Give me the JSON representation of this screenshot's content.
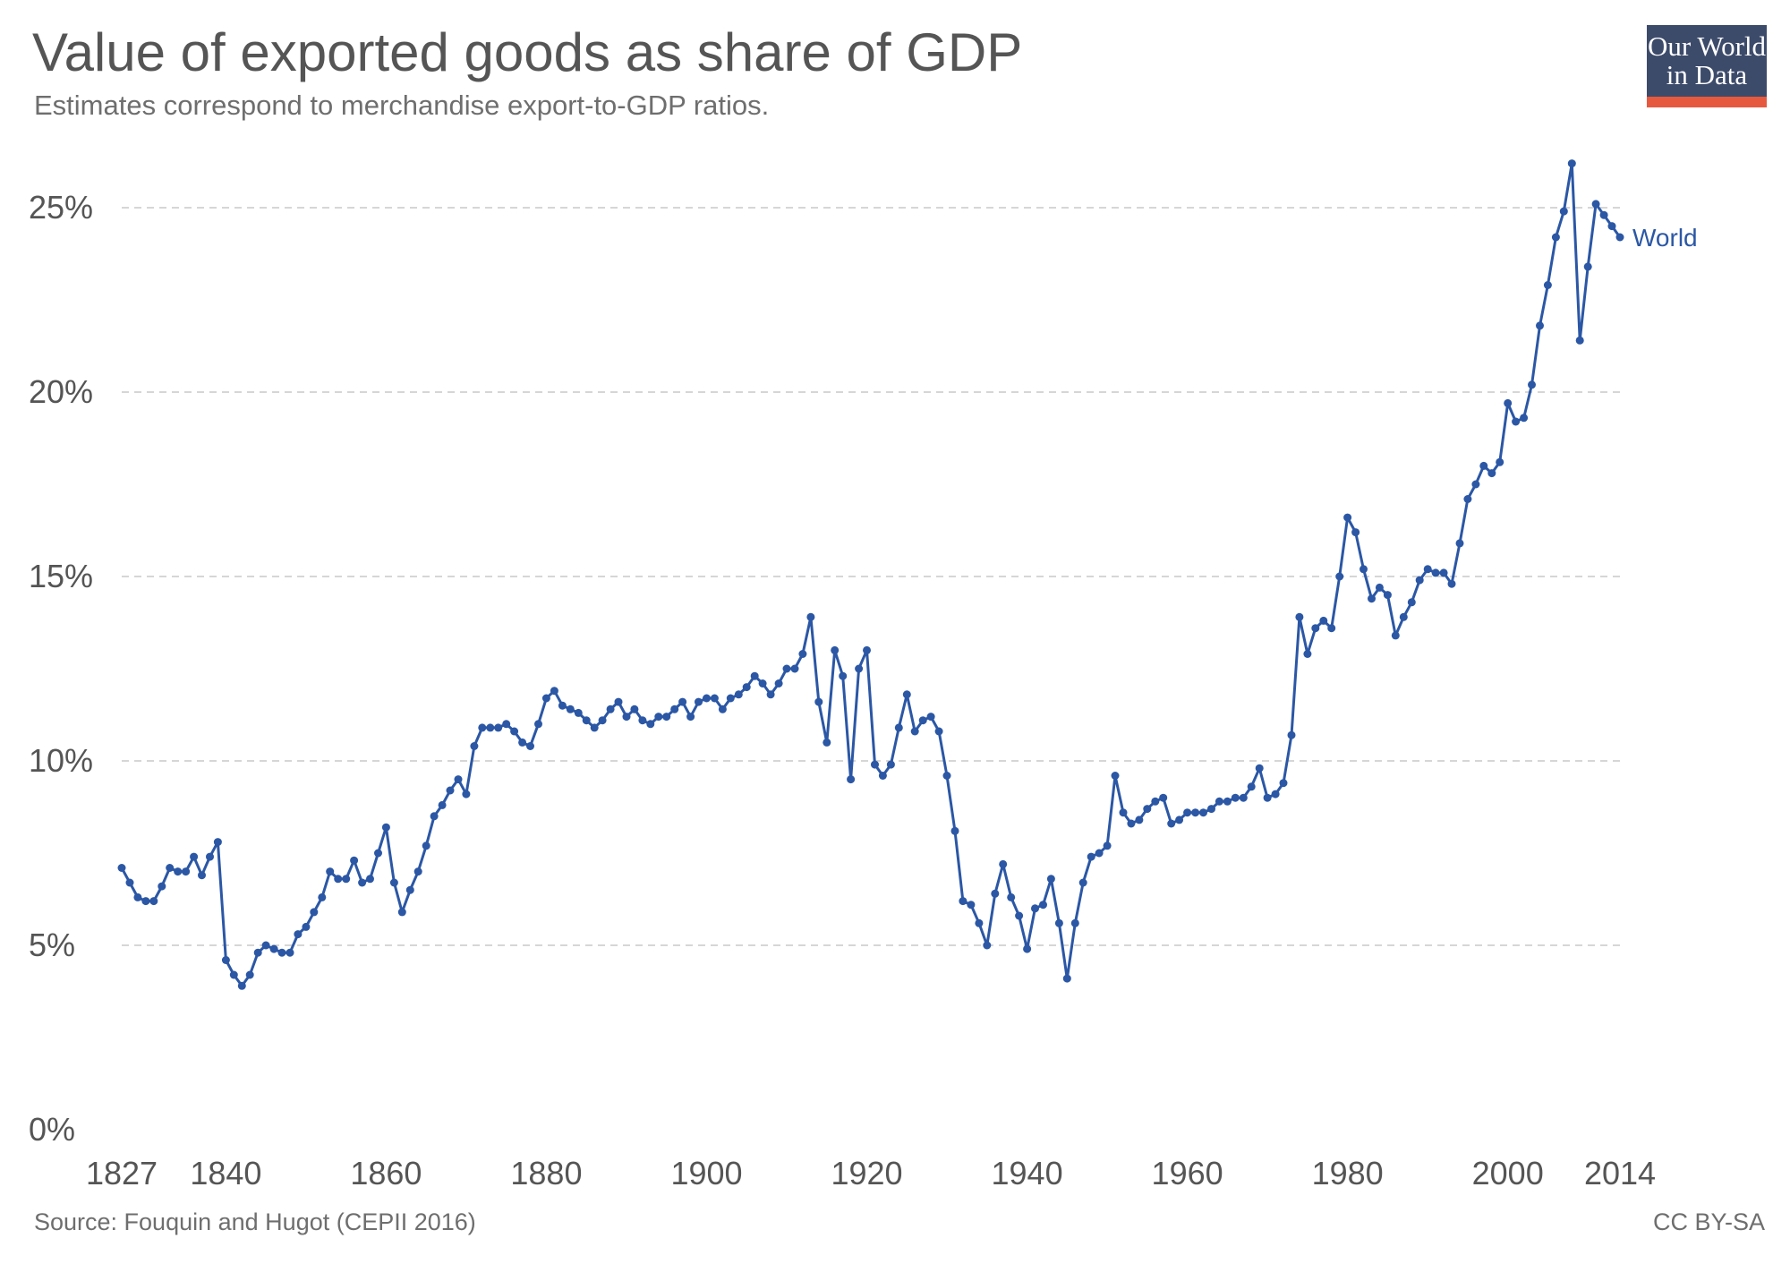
{
  "header": {
    "title": "Value of exported goods as share of GDP",
    "subtitle": "Estimates correspond to merchandise export-to-GDP ratios."
  },
  "logo": {
    "line1": "Our World",
    "line2": "in Data",
    "box_color": "#3d4b6b",
    "bar_color": "#e6593f"
  },
  "footer": {
    "source": "Source: Fouquin and Hugot (CEPII 2016)",
    "license": "CC BY-SA"
  },
  "chart_data": {
    "type": "line",
    "title": "Value of exported goods as share of GDP",
    "xlabel": "",
    "ylabel": "",
    "xlim": [
      1827,
      2014
    ],
    "ylim": [
      0,
      27
    ],
    "y_ticks": [
      0,
      5,
      10,
      15,
      20,
      25
    ],
    "y_tick_labels": [
      "0%",
      "5%",
      "10%",
      "15%",
      "20%",
      "25%"
    ],
    "x_ticks": [
      1827,
      1840,
      1860,
      1880,
      1900,
      1920,
      1940,
      1960,
      1980,
      2000,
      2014
    ],
    "x_tick_labels": [
      "1827",
      "1840",
      "1860",
      "1880",
      "1900",
      "1920",
      "1940",
      "1960",
      "1980",
      "2000",
      "2014"
    ],
    "grid": "horizontal dashed",
    "color": "#2b57a5",
    "series": [
      {
        "name": "World",
        "x": [
          1827,
          1828,
          1829,
          1830,
          1831,
          1832,
          1833,
          1834,
          1835,
          1836,
          1837,
          1838,
          1839,
          1840,
          1841,
          1842,
          1843,
          1844,
          1845,
          1846,
          1847,
          1848,
          1849,
          1850,
          1851,
          1852,
          1853,
          1854,
          1855,
          1856,
          1857,
          1858,
          1859,
          1860,
          1861,
          1862,
          1863,
          1864,
          1865,
          1866,
          1867,
          1868,
          1869,
          1870,
          1871,
          1872,
          1873,
          1874,
          1875,
          1876,
          1877,
          1878,
          1879,
          1880,
          1881,
          1882,
          1883,
          1884,
          1885,
          1886,
          1887,
          1888,
          1889,
          1890,
          1891,
          1892,
          1893,
          1894,
          1895,
          1896,
          1897,
          1898,
          1899,
          1900,
          1901,
          1902,
          1903,
          1904,
          1905,
          1906,
          1907,
          1908,
          1909,
          1910,
          1911,
          1912,
          1913,
          1914,
          1915,
          1916,
          1917,
          1918,
          1919,
          1920,
          1921,
          1922,
          1923,
          1924,
          1925,
          1926,
          1927,
          1928,
          1929,
          1930,
          1931,
          1932,
          1933,
          1934,
          1935,
          1936,
          1937,
          1938,
          1939,
          1940,
          1941,
          1942,
          1943,
          1944,
          1945,
          1946,
          1947,
          1948,
          1949,
          1950,
          1951,
          1952,
          1953,
          1954,
          1955,
          1956,
          1957,
          1958,
          1959,
          1960,
          1961,
          1962,
          1963,
          1964,
          1965,
          1966,
          1967,
          1968,
          1969,
          1970,
          1971,
          1972,
          1973,
          1974,
          1975,
          1976,
          1977,
          1978,
          1979,
          1980,
          1981,
          1982,
          1983,
          1984,
          1985,
          1986,
          1987,
          1988,
          1989,
          1990,
          1991,
          1992,
          1993,
          1994,
          1995,
          1996,
          1997,
          1998,
          1999,
          2000,
          2001,
          2002,
          2003,
          2004,
          2005,
          2006,
          2007,
          2008,
          2009,
          2010,
          2011,
          2012,
          2013,
          2014
        ],
        "values": [
          7.1,
          6.7,
          6.3,
          6.2,
          6.2,
          6.6,
          7.1,
          7.0,
          7.0,
          7.4,
          6.9,
          7.4,
          7.8,
          4.6,
          4.2,
          3.9,
          4.2,
          4.8,
          5.0,
          4.9,
          4.8,
          4.8,
          5.3,
          5.5,
          5.9,
          6.3,
          7.0,
          6.8,
          6.8,
          7.3,
          6.7,
          6.8,
          7.5,
          8.2,
          6.7,
          5.9,
          6.5,
          7.0,
          7.7,
          8.5,
          8.8,
          9.2,
          9.5,
          9.1,
          10.4,
          10.9,
          10.9,
          10.9,
          11.0,
          10.8,
          10.5,
          10.4,
          11.0,
          11.7,
          11.9,
          11.5,
          11.4,
          11.3,
          11.1,
          10.9,
          11.1,
          11.4,
          11.6,
          11.2,
          11.4,
          11.1,
          11.0,
          11.2,
          11.2,
          11.4,
          11.6,
          11.2,
          11.6,
          11.7,
          11.7,
          11.4,
          11.7,
          11.8,
          12.0,
          12.3,
          12.1,
          11.8,
          12.1,
          12.5,
          12.5,
          12.9,
          13.9,
          11.6,
          10.5,
          13.0,
          12.3,
          9.5,
          12.5,
          13.0,
          9.9,
          9.6,
          9.9,
          10.9,
          11.8,
          10.8,
          11.1,
          11.2,
          10.8,
          9.6,
          8.1,
          6.2,
          6.1,
          5.6,
          5.0,
          6.4,
          7.2,
          6.3,
          5.8,
          4.9,
          6.0,
          6.1,
          6.8,
          5.6,
          4.1,
          5.6,
          6.7,
          7.4,
          7.5,
          7.7,
          9.6,
          8.6,
          8.3,
          8.4,
          8.7,
          8.9,
          9.0,
          8.3,
          8.4,
          8.6,
          8.6,
          8.6,
          8.7,
          8.9,
          8.9,
          9.0,
          9.0,
          9.3,
          9.8,
          9.0,
          9.1,
          9.4,
          10.7,
          13.9,
          12.9,
          13.6,
          13.8,
          13.6,
          15.0,
          16.6,
          16.2,
          15.2,
          14.4,
          14.7,
          14.5,
          13.4,
          13.9,
          14.3,
          14.9,
          15.2,
          15.1,
          15.1,
          14.8,
          15.9,
          17.1,
          17.5,
          18.0,
          17.8,
          18.1,
          19.7,
          19.2,
          19.3,
          20.2,
          21.8,
          22.9,
          24.2,
          24.9,
          26.2,
          21.4,
          23.4,
          25.1,
          24.8,
          24.5,
          24.2
        ]
      }
    ]
  }
}
